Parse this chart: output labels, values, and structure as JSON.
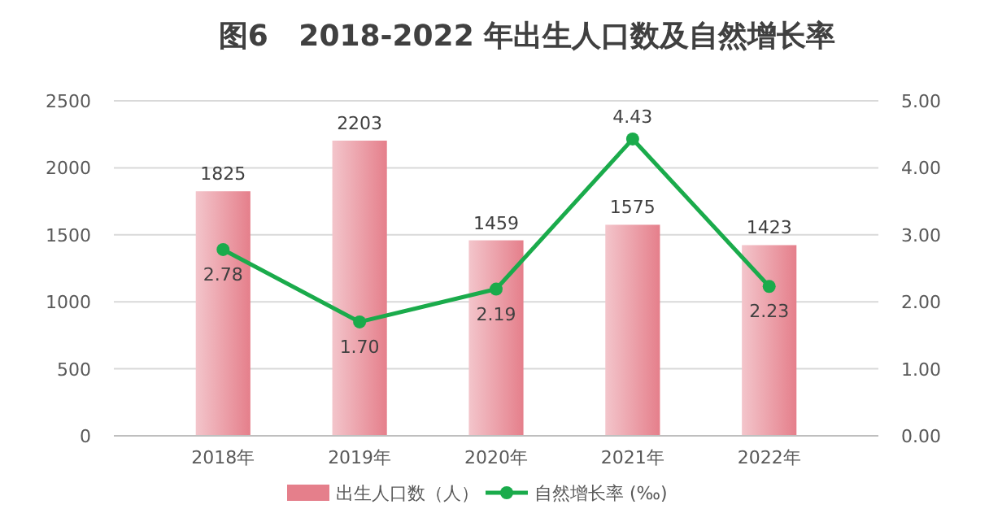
{
  "chart_data": {
    "type": "bar",
    "title": "图6   2018-2022 年出生人口数及自然增长率",
    "categories": [
      "2018年",
      "2019年",
      "2020年",
      "2021年",
      "2022年"
    ],
    "series": [
      {
        "name": "出生人口数（人）",
        "color": "#e57f8b",
        "values": [
          1825,
          2203,
          1459,
          1575,
          1423
        ]
      },
      {
        "name": "自然增长率 (‰)",
        "type": "line",
        "axis": "y2",
        "color": "#1aab4b",
        "values": [
          2.78,
          1.7,
          2.19,
          4.43,
          2.23
        ],
        "value_labels": [
          "2.78",
          "1.70",
          "2.19",
          "4.43",
          "2.23"
        ]
      }
    ],
    "ylim": [
      0,
      2500
    ],
    "yticks": [
      0,
      500,
      1000,
      1500,
      2000,
      2500
    ],
    "y2lim": [
      0,
      5
    ],
    "y2ticks": [
      {
        "value": 0,
        "label": "0.00"
      },
      {
        "value": 1,
        "label": "1.00"
      },
      {
        "value": 2,
        "label": "2.00"
      },
      {
        "value": 3,
        "label": "3.00"
      },
      {
        "value": 4,
        "label": "4.00"
      },
      {
        "value": 5,
        "label": "5.00"
      }
    ],
    "grid": "y",
    "data_labels": true,
    "marker": "circle",
    "line_style": "solid",
    "legend": "bottom"
  }
}
